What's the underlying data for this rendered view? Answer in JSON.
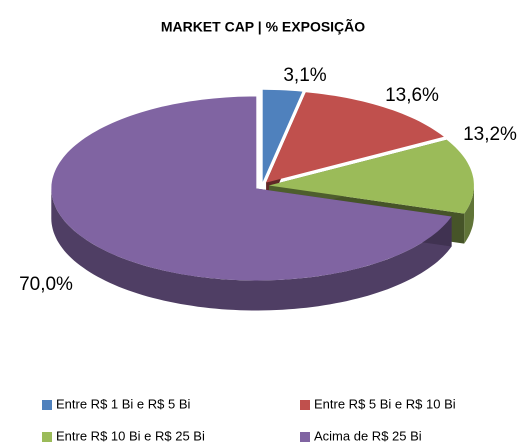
{
  "chart_data": {
    "type": "pie3d",
    "title": "MARKET CAP | % EXPOSIÇÃO",
    "categories": [
      "Entre R$ 1 Bi e R$ 5 Bi",
      "Entre R$ 5 Bi e R$ 10 Bi",
      "Entre R$ 10 Bi e R$ 25 Bi",
      "Acima de R$ 25 Bi"
    ],
    "values": [
      3.1,
      13.6,
      13.2,
      70.0
    ],
    "value_labels": [
      "3,1%",
      "13,6%",
      "13,2%",
      "70,0%"
    ],
    "colors": [
      "#4f81bd",
      "#c0504d",
      "#9bbb59",
      "#8064a2"
    ],
    "legend": "bottom"
  }
}
